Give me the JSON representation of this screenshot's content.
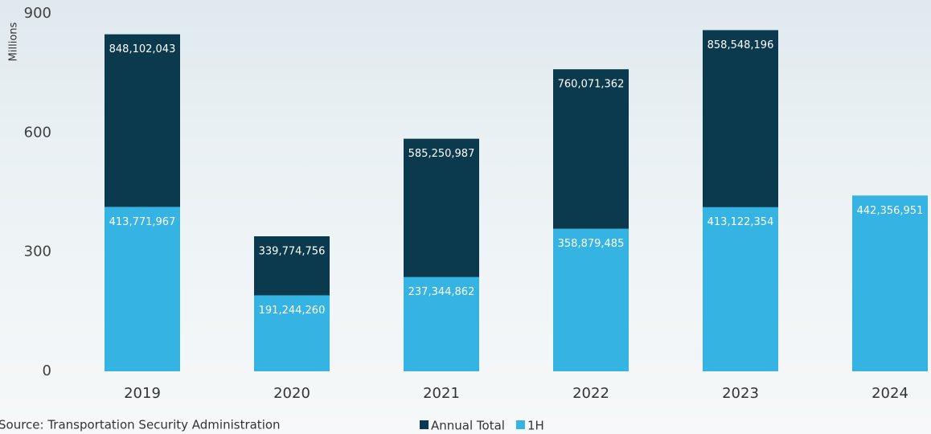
{
  "chart_data": {
    "type": "bar",
    "y_label": "Millions",
    "source": "Source: Transportation Security Administration",
    "categories": [
      "2019",
      "2020",
      "2021",
      "2022",
      "2023",
      "2024"
    ],
    "series": [
      {
        "name": "Annual Total",
        "color": "#0b3a4e",
        "values": [
          848.102043,
          339.774756,
          585.250987,
          760.071362,
          858.548196,
          null
        ],
        "value_labels": [
          "848,102,043",
          "339,774,756",
          "585,250,987",
          "760,071,362",
          "858,548,196",
          null
        ]
      },
      {
        "name": "1H",
        "color": "#35b3e3",
        "values": [
          413.771967,
          191.24426,
          237.344862,
          358.879485,
          413.122354,
          442.356951
        ],
        "value_labels": [
          "413,771,967",
          "191,244,260",
          "237,344,862",
          "358,879,485",
          "413,122,354",
          "442,356,951"
        ]
      }
    ],
    "ylim": [
      0,
      900
    ],
    "yticks": [
      0,
      300,
      600,
      900
    ],
    "grid": false,
    "overlap": true
  }
}
